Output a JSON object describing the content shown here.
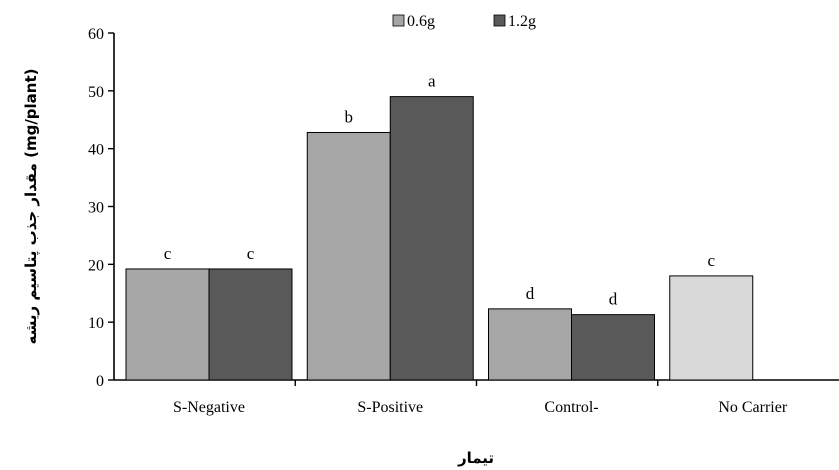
{
  "chart_data": {
    "type": "bar",
    "categories": [
      "S-Negative",
      "S-Positive",
      "Control-",
      "No Carrier"
    ],
    "series": [
      {
        "name": "0.6g",
        "color": "#a6a6a6",
        "values": [
          19.2,
          42.8,
          12.3,
          18.0
        ],
        "labels": [
          "c",
          "b",
          "d",
          "c"
        ]
      },
      {
        "name": "1.2g",
        "color": "#595959",
        "values": [
          19.2,
          49.0,
          11.3,
          null
        ],
        "labels": [
          "c",
          "a",
          "d",
          ""
        ]
      }
    ],
    "no_carrier_color": "#d9d9d9",
    "xlabel": "تیمار",
    "ylabel": "مقدار جذب پتاسیم ریشه (mg/plant)",
    "ylim": [
      0,
      60
    ],
    "yticks": [
      0,
      10,
      20,
      30,
      40,
      50,
      60
    ],
    "grid": false,
    "legend_position": "top-center"
  }
}
